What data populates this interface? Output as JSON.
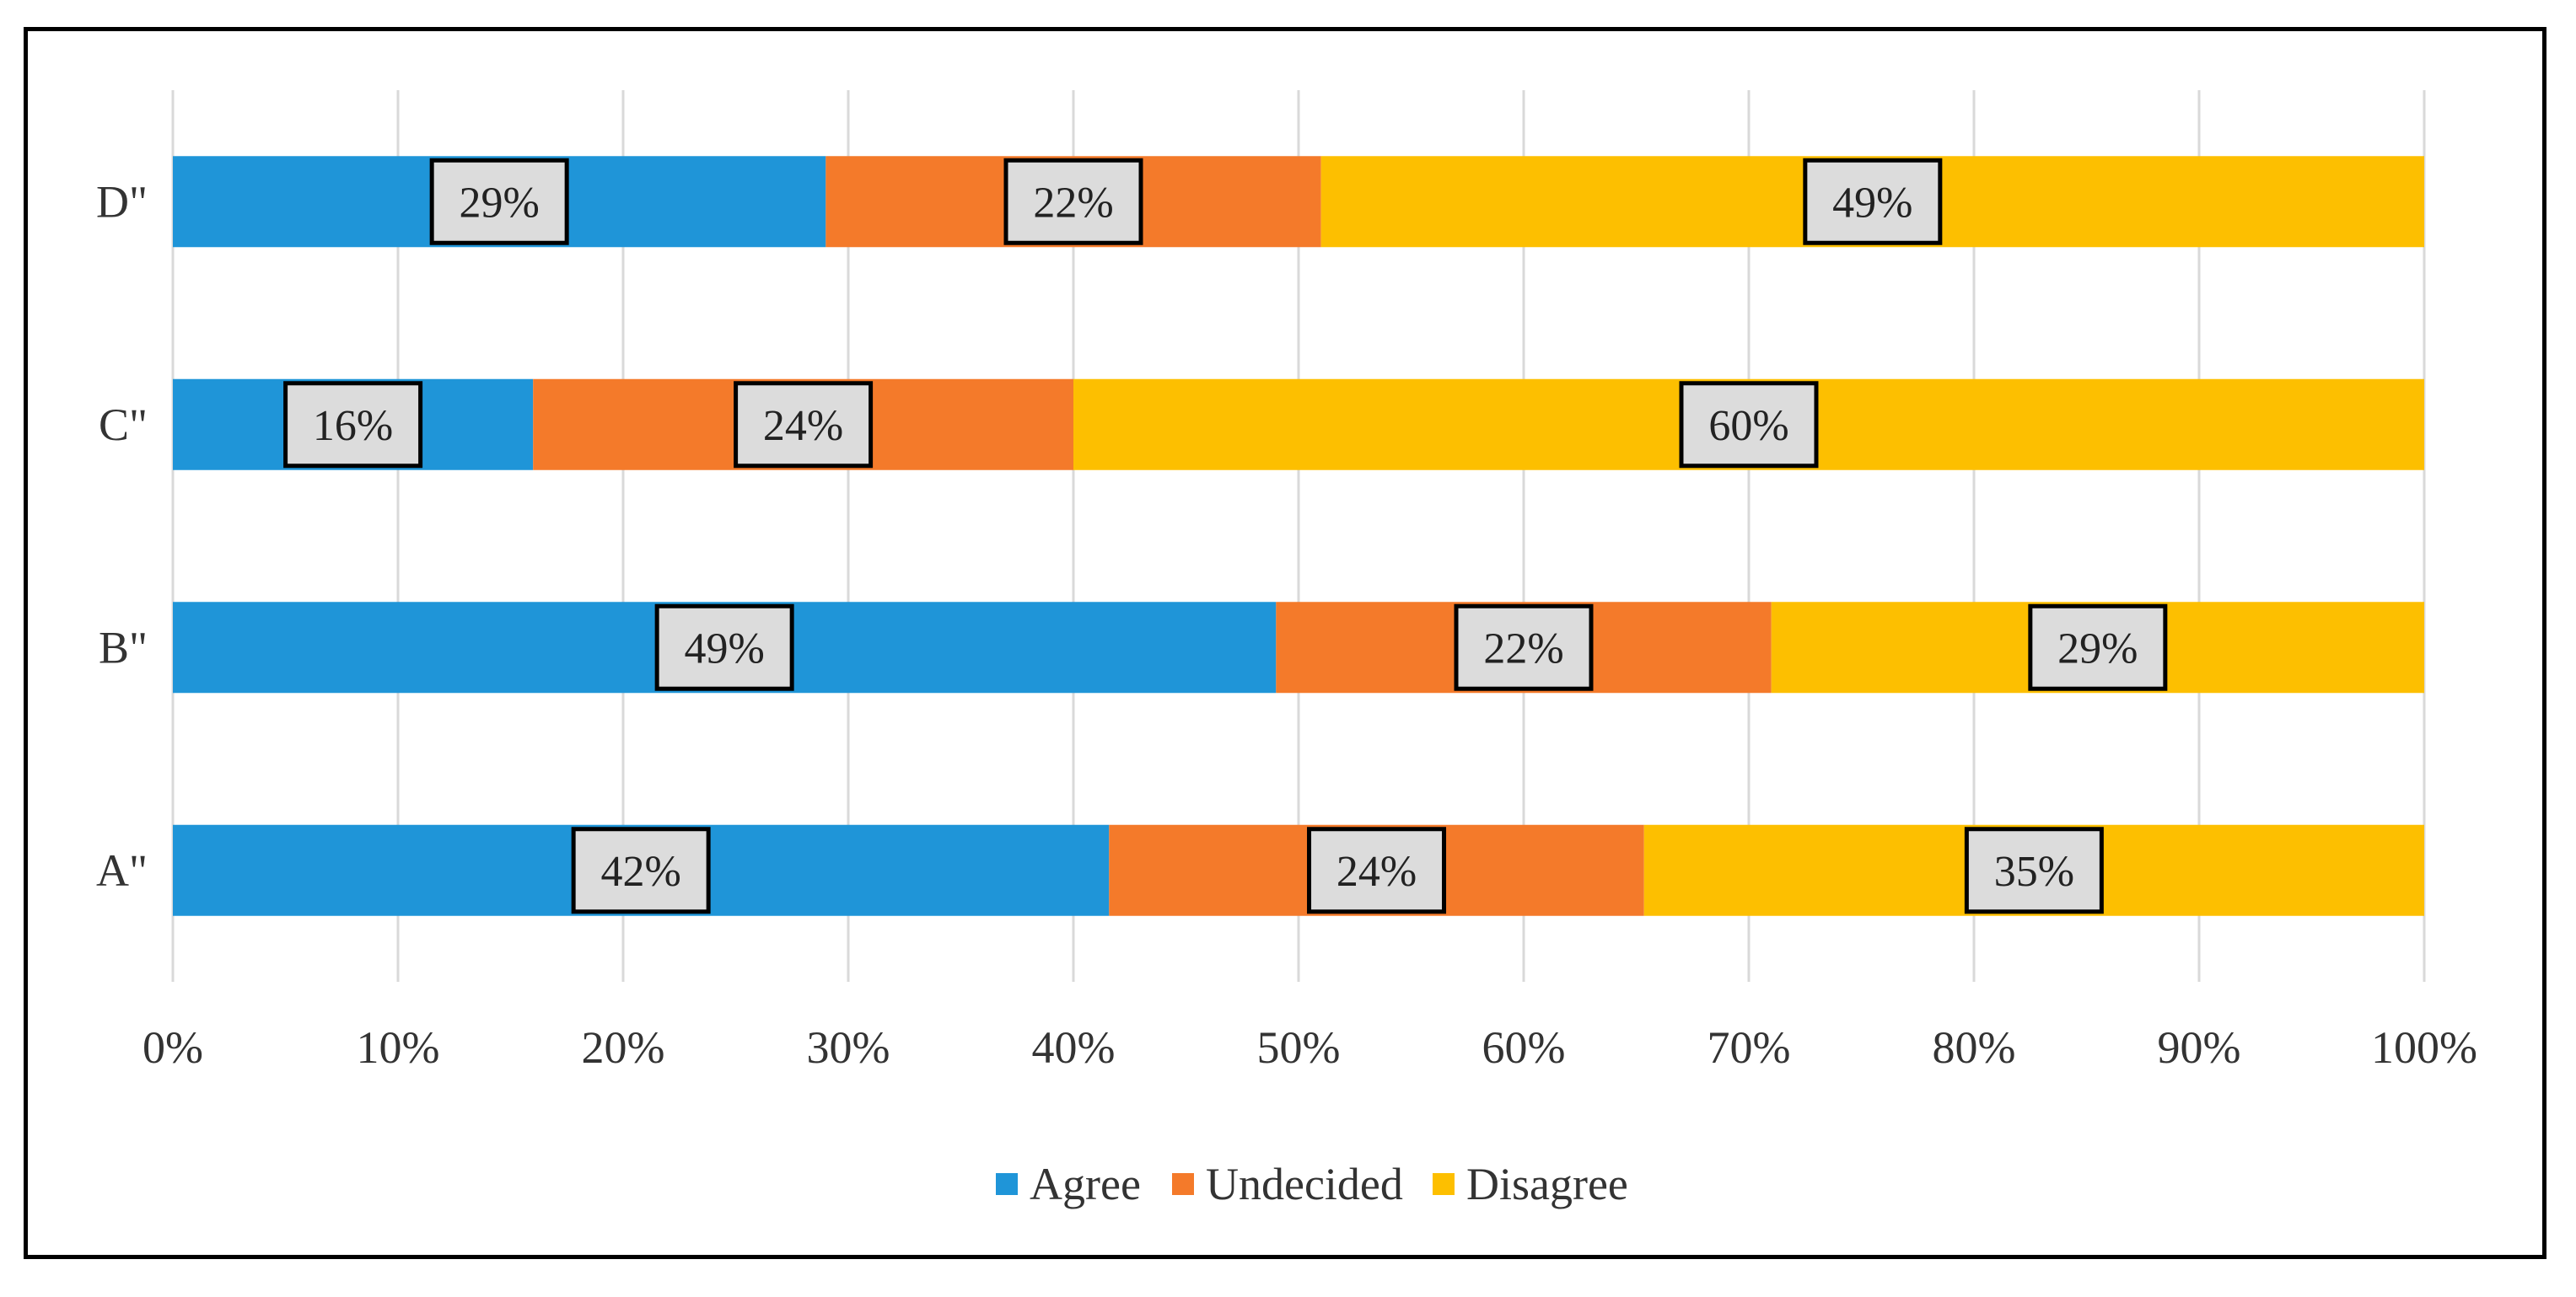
{
  "chart_data": {
    "type": "bar",
    "orientation": "horizontal",
    "stacked": "100%",
    "categories": [
      "A\"",
      "B\"",
      "C\"",
      "D\""
    ],
    "series": [
      {
        "name": "Agree",
        "color": "#1f95d8",
        "values": [
          42,
          49,
          16,
          29
        ],
        "labels": [
          "42%",
          "49%",
          "16%",
          "29%"
        ]
      },
      {
        "name": "Undecided",
        "color": "#f47a2a",
        "values": [
          24,
          22,
          24,
          22
        ],
        "labels": [
          "24%",
          "22%",
          "24%",
          "22%"
        ]
      },
      {
        "name": "Disagree",
        "color": "#fdbf00",
        "values": [
          35,
          29,
          60,
          49
        ],
        "labels": [
          "35%",
          "29%",
          "60%",
          "49%"
        ]
      }
    ],
    "xlim": [
      0,
      100
    ],
    "x_ticks": [
      "0%",
      "10%",
      "20%",
      "30%",
      "40%",
      "50%",
      "60%",
      "70%",
      "80%",
      "90%",
      "100%"
    ],
    "grid": true,
    "legend_position": "bottom",
    "title": "",
    "xlabel": "",
    "ylabel": ""
  }
}
